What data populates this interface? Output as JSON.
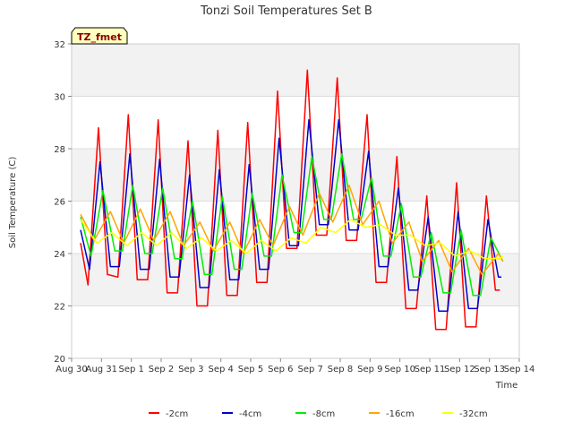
{
  "chart_data": {
    "type": "line",
    "title": "Tonzi Soil Temperatures Set B",
    "xlabel": "Time",
    "ylabel": "Soil Temperature (C)",
    "tag": "TZ_fmet",
    "ylim": [
      20,
      32
    ],
    "yticks": [
      20,
      22,
      24,
      26,
      28,
      30,
      32
    ],
    "xlim": [
      0,
      15
    ],
    "xticks": [
      {
        "x": 0,
        "label": "Aug 30"
      },
      {
        "x": 1,
        "label": "Aug 31"
      },
      {
        "x": 2,
        "label": "Sep 1"
      },
      {
        "x": 3,
        "label": "Sep 2"
      },
      {
        "x": 4,
        "label": "Sep 3"
      },
      {
        "x": 5,
        "label": "Sep 4"
      },
      {
        "x": 6,
        "label": "Sep 5"
      },
      {
        "x": 7,
        "label": "Sep 6"
      },
      {
        "x": 8,
        "label": "Sep 7"
      },
      {
        "x": 9,
        "label": "Sep 8"
      },
      {
        "x": 10,
        "label": "Sep 9"
      },
      {
        "x": 11,
        "label": "Sep 10"
      },
      {
        "x": 12,
        "label": "Sep 11"
      },
      {
        "x": 13,
        "label": "Sep 12"
      },
      {
        "x": 14,
        "label": "Sep 13"
      },
      {
        "x": 15,
        "label": "Sep 14"
      }
    ],
    "grid": true,
    "legend_position": "bottom",
    "series": [
      {
        "name": "-2cm",
        "color": "#ff0000",
        "x": [
          0.3,
          0.55,
          0.9,
          1.2,
          1.55,
          1.9,
          2.2,
          2.55,
          2.9,
          3.2,
          3.55,
          3.9,
          4.2,
          4.55,
          4.9,
          5.2,
          5.55,
          5.9,
          6.2,
          6.55,
          6.9,
          7.2,
          7.55,
          7.9,
          8.2,
          8.55,
          8.9,
          9.2,
          9.55,
          9.9,
          10.2,
          10.55,
          10.9,
          11.2,
          11.55,
          11.9,
          12.2,
          12.55,
          12.9,
          13.2,
          13.55,
          13.9,
          14.2,
          14.35
        ],
        "y": [
          24.4,
          22.8,
          28.8,
          23.2,
          23.1,
          29.3,
          23.0,
          23.0,
          29.1,
          22.5,
          22.5,
          28.3,
          22.0,
          22.0,
          28.7,
          22.4,
          22.4,
          29.0,
          22.9,
          22.9,
          30.2,
          24.2,
          24.2,
          31.0,
          24.7,
          24.7,
          30.7,
          24.5,
          24.5,
          29.3,
          22.9,
          22.9,
          27.7,
          21.9,
          21.9,
          26.2,
          21.1,
          21.1,
          26.7,
          21.2,
          21.2,
          26.2,
          22.6,
          22.6
        ]
      },
      {
        "name": "-4cm",
        "color": "#0000cc",
        "x": [
          0.3,
          0.6,
          0.95,
          1.3,
          1.6,
          1.95,
          2.3,
          2.6,
          2.95,
          3.3,
          3.6,
          3.95,
          4.3,
          4.6,
          4.95,
          5.3,
          5.6,
          5.95,
          6.3,
          6.6,
          6.95,
          7.3,
          7.6,
          7.95,
          8.3,
          8.6,
          8.95,
          9.3,
          9.6,
          9.95,
          10.3,
          10.6,
          10.95,
          11.3,
          11.6,
          11.95,
          12.3,
          12.6,
          12.95,
          13.3,
          13.6,
          13.95,
          14.3,
          14.4
        ],
        "y": [
          24.9,
          23.4,
          27.5,
          23.5,
          23.5,
          27.8,
          23.4,
          23.4,
          27.6,
          23.1,
          23.1,
          27.0,
          22.7,
          22.7,
          27.2,
          23.0,
          23.0,
          27.4,
          23.4,
          23.4,
          28.4,
          24.3,
          24.3,
          29.1,
          25.1,
          25.1,
          29.1,
          24.9,
          24.9,
          27.9,
          23.5,
          23.5,
          26.5,
          22.6,
          22.6,
          25.4,
          21.8,
          21.8,
          25.6,
          21.9,
          21.9,
          25.3,
          23.1,
          23.1
        ]
      },
      {
        "name": "-8cm",
        "color": "#00ee00",
        "x": [
          0.3,
          0.65,
          1.05,
          1.45,
          1.7,
          2.05,
          2.45,
          2.7,
          3.05,
          3.45,
          3.7,
          4.05,
          4.45,
          4.7,
          5.05,
          5.45,
          5.7,
          6.05,
          6.45,
          6.7,
          7.05,
          7.45,
          7.7,
          8.05,
          8.45,
          8.7,
          9.05,
          9.45,
          9.7,
          10.05,
          10.45,
          10.7,
          11.05,
          11.45,
          11.7,
          12.05,
          12.45,
          12.7,
          13.05,
          13.45,
          13.7,
          14.05,
          14.45
        ],
        "y": [
          25.4,
          23.9,
          26.4,
          24.1,
          24.1,
          26.6,
          24.0,
          24.0,
          26.5,
          23.8,
          23.8,
          26.0,
          23.2,
          23.2,
          26.2,
          23.4,
          23.4,
          26.3,
          23.9,
          23.9,
          27.0,
          24.8,
          24.8,
          27.7,
          25.3,
          25.3,
          27.8,
          25.3,
          25.3,
          26.9,
          23.9,
          23.9,
          25.9,
          23.1,
          23.1,
          24.8,
          22.5,
          22.5,
          24.9,
          22.4,
          22.4,
          24.6,
          23.7
        ]
      },
      {
        "name": "-16cm",
        "color": "#ffa500",
        "x": [
          0.3,
          0.75,
          1.3,
          1.75,
          2.3,
          2.75,
          3.3,
          3.75,
          4.3,
          4.75,
          5.3,
          5.75,
          6.3,
          6.75,
          7.3,
          7.75,
          8.3,
          8.75,
          9.3,
          9.75,
          10.3,
          10.75,
          11.3,
          11.75,
          12.3,
          12.75,
          13.3,
          13.75,
          14.3,
          14.45
        ],
        "y": [
          25.5,
          24.5,
          25.6,
          24.4,
          25.7,
          24.5,
          25.6,
          24.3,
          25.2,
          24.1,
          25.2,
          24.0,
          25.3,
          24.3,
          25.8,
          24.7,
          26.3,
          25.2,
          26.6,
          25.1,
          26.0,
          24.4,
          25.2,
          23.7,
          24.5,
          23.3,
          24.2,
          23.2,
          24.0,
          23.7
        ]
      },
      {
        "name": "-32cm",
        "color": "#ffff00",
        "x": [
          0.3,
          0.85,
          1.35,
          1.85,
          2.35,
          2.85,
          3.35,
          3.85,
          4.35,
          4.85,
          5.35,
          5.85,
          6.35,
          6.85,
          7.35,
          7.85,
          8.35,
          8.85,
          9.35,
          9.85,
          10.35,
          10.85,
          11.35,
          11.85,
          12.35,
          12.85,
          13.35,
          13.85,
          14.35,
          14.45
        ],
        "y": [
          25.3,
          24.4,
          24.8,
          24.3,
          24.8,
          24.3,
          24.8,
          24.2,
          24.6,
          24.1,
          24.5,
          24.0,
          24.5,
          24.1,
          24.6,
          24.4,
          25.0,
          24.8,
          25.3,
          25.0,
          25.1,
          24.7,
          24.7,
          24.3,
          24.4,
          23.9,
          24.1,
          23.8,
          23.8,
          23.9
        ]
      }
    ]
  }
}
